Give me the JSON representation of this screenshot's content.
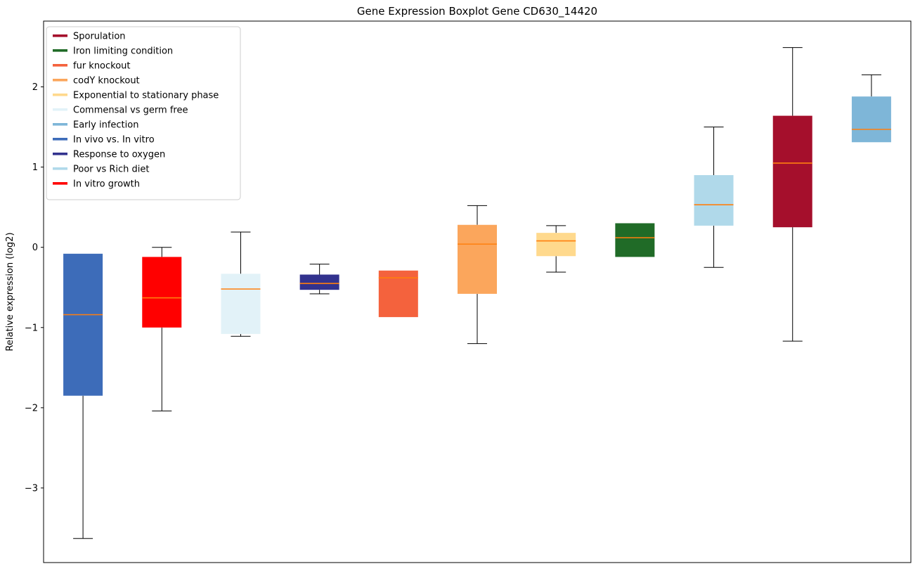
{
  "chart_data": {
    "type": "box",
    "title": "Gene Expression Boxplot Gene CD630_14420",
    "ylabel": "Relative expression (log2)",
    "xlabel": "",
    "ylim": [
      -3.93,
      2.82
    ],
    "yticks": [
      2,
      1,
      0,
      -1,
      -2,
      -3
    ],
    "ytick_labels": [
      "2",
      "1",
      "0",
      "−1",
      "−2",
      "−3"
    ],
    "grid": false,
    "legend_position": "upper left",
    "median_color": "#ff7f0e",
    "whisker_color": "#000000",
    "axes_edge_color": "#000000",
    "legend": [
      {
        "label": "Sporulation",
        "color": "#a50f2c"
      },
      {
        "label": "Iron limiting condition",
        "color": "#206b27"
      },
      {
        "label": "fur knockout",
        "color": "#f4623d"
      },
      {
        "label": "codY knockout",
        "color": "#fba65c"
      },
      {
        "label": "Exponential to stationary phase",
        "color": "#ffd98d"
      },
      {
        "label": "Commensal vs germ free",
        "color": "#e2f2f8"
      },
      {
        "label": "Early infection",
        "color": "#7eb6d8"
      },
      {
        "label": "In vivo vs. In vitro",
        "color": "#3d6cb9"
      },
      {
        "label": "Response to oxygen",
        "color": "#32328e"
      },
      {
        "label": "Poor vs Rich diet",
        "color": "#b0d9ea"
      },
      {
        "label": "In vitro growth",
        "color": "#ff0000"
      }
    ],
    "boxes": [
      {
        "name": "In vivo vs. In vitro",
        "color": "#3d6cb9",
        "whislo": -3.63,
        "q1": -1.85,
        "med": -0.84,
        "q3": -0.08,
        "whishi": -0.08
      },
      {
        "name": "In vitro growth",
        "color": "#ff0000",
        "whislo": -2.04,
        "q1": -1.0,
        "med": -0.63,
        "q3": -0.12,
        "whishi": 0.0
      },
      {
        "name": "Commensal vs germ free",
        "color": "#e2f2f8",
        "whislo": -1.11,
        "q1": -1.08,
        "med": -0.52,
        "q3": -0.33,
        "whishi": 0.19
      },
      {
        "name": "Response to oxygen",
        "color": "#32328e",
        "whislo": -0.58,
        "q1": -0.53,
        "med": -0.45,
        "q3": -0.34,
        "whishi": -0.21
      },
      {
        "name": "fur knockout",
        "color": "#f4623d",
        "whislo": -0.87,
        "q1": -0.87,
        "med": -0.38,
        "q3": -0.29,
        "whishi": -0.29
      },
      {
        "name": "codY knockout",
        "color": "#fba65c",
        "whislo": -1.2,
        "q1": -0.58,
        "med": 0.04,
        "q3": 0.28,
        "whishi": 0.52
      },
      {
        "name": "Exponential to stationary phase",
        "color": "#ffd98d",
        "whislo": -0.31,
        "q1": -0.11,
        "med": 0.08,
        "q3": 0.18,
        "whishi": 0.27
      },
      {
        "name": "Iron limiting condition",
        "color": "#206b27",
        "whislo": -0.12,
        "q1": -0.12,
        "med": 0.12,
        "q3": 0.3,
        "whishi": 0.3
      },
      {
        "name": "Poor vs Rich diet",
        "color": "#b0d9ea",
        "whislo": -0.25,
        "q1": 0.27,
        "med": 0.53,
        "q3": 0.9,
        "whishi": 1.5
      },
      {
        "name": "Sporulation",
        "color": "#a50f2c",
        "whislo": -1.17,
        "q1": 0.25,
        "med": 1.05,
        "q3": 1.64,
        "whishi": 2.49
      },
      {
        "name": "Early infection",
        "color": "#7eb6d8",
        "whislo": 1.31,
        "q1": 1.31,
        "med": 1.47,
        "q3": 1.88,
        "whishi": 2.15
      }
    ]
  }
}
